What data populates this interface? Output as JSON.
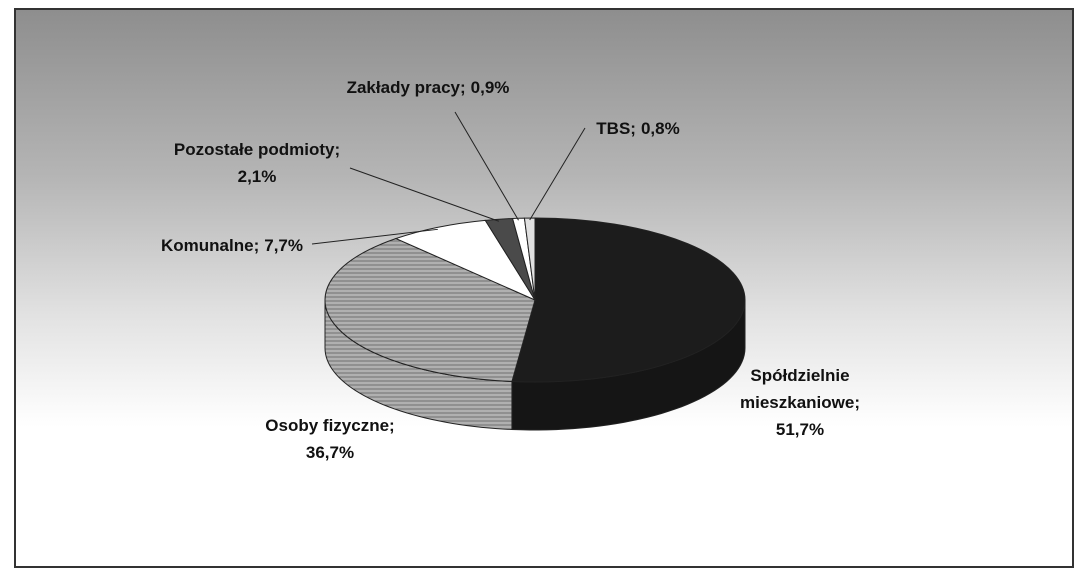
{
  "chart_data": {
    "type": "pie",
    "categories": [
      "Spółdzielnie mieszkaniowe;",
      "Osoby fizyczne;",
      "Komunalne;",
      "Pozostałe podmioty;",
      "Zakłady pracy;",
      "TBS;"
    ],
    "values": [
      51.7,
      36.7,
      7.7,
      2.1,
      0.9,
      0.8
    ],
    "value_labels": [
      "51,7%",
      "36,7%",
      "7,7%",
      "2,1%",
      "0,9%",
      "0,8%"
    ],
    "colors": [
      "#1c1c1c",
      "#a8a8a8",
      "#ffffff",
      "#4a4a4a",
      "#ffffff",
      "#e0e0e0"
    ]
  }
}
